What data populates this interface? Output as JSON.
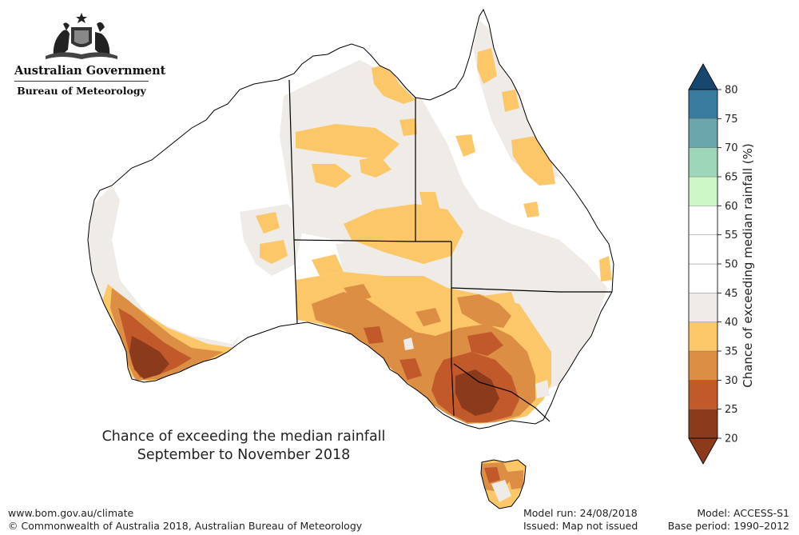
{
  "header": {
    "government": "Australian Government",
    "agency": "Bureau of Meteorology"
  },
  "map": {
    "title_line1": "Chance of exceeding the median rainfall",
    "title_line2": "September to November 2018",
    "region": "Australia",
    "category_colors": {
      "20-25": "#8b3a1c",
      "25-30": "#c1592a",
      "30-35": "#dc8e45",
      "35-40": "#fcc769",
      "40-45": "#efebe6",
      "45-60": "#ffffff",
      "60-65": "#ccf8c8",
      "65-70": "#9ed6b9",
      "70-75": "#6ba6aa",
      "75-80": "#3a7ba0",
      "80+": "#17466f"
    }
  },
  "legend": {
    "title": "Chance of exceeding median rainfall (%)",
    "ticks": [
      "20",
      "25",
      "30",
      "35",
      "40",
      "45",
      "50",
      "55",
      "60",
      "65",
      "70",
      "75",
      "80"
    ]
  },
  "footer": {
    "url": "www.bom.gov.au/climate",
    "copyright": "© Commonwealth of Australia 2018, Australian Bureau of Meteorology",
    "model_run": "Model run: 24/08/2018",
    "issued": "Issued: Map not issued",
    "model": "Model: ACCESS-S1",
    "base_period": "Base period: 1990–2012"
  }
}
